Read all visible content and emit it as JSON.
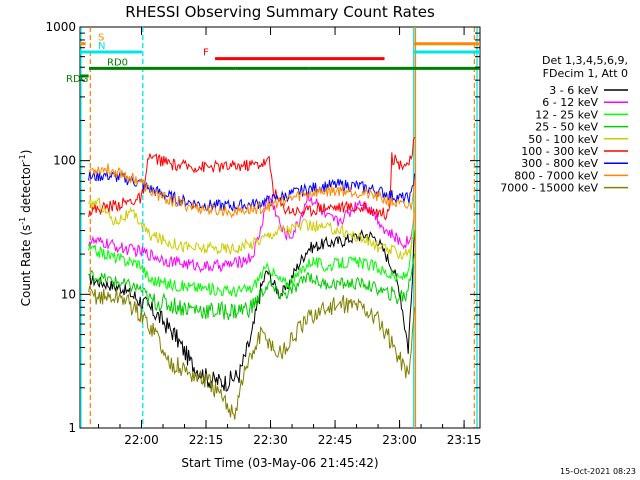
{
  "chart_data": {
    "type": "line",
    "title": "RHESSI Observing Summary Count Rates",
    "xlabel": "Start Time (03-May-06 21:45:42)",
    "ylabel_main": "Count Rate (s",
    "ylabel_sup1": "-1",
    "ylabel_mid": " detector",
    "ylabel_sup2": "-1",
    "ylabel_end": ")",
    "yscale": "log",
    "ylim": [
      1,
      1000
    ],
    "xlim_minutes_after_start": [
      0,
      93
    ],
    "y_ticks": [
      "1",
      "10",
      "100",
      "1000"
    ],
    "x_ticks": [
      {
        "label": "22:00",
        "t": 14.3
      },
      {
        "label": "22:15",
        "t": 29.3
      },
      {
        "label": "22:30",
        "t": 44.3
      },
      {
        "label": "22:45",
        "t": 59.3
      },
      {
        "label": "23:00",
        "t": 74.3
      },
      {
        "label": "23:15",
        "t": 89.3
      }
    ],
    "legend_header": [
      "Det 1,3,4,5,6,9,",
      "FDecim 1, Att 0"
    ],
    "series": [
      {
        "name": "3 - 6 keV",
        "color": "#000000",
        "points": [
          [
            2,
            13
          ],
          [
            6,
            12
          ],
          [
            10,
            11
          ],
          [
            14,
            9
          ],
          [
            18,
            7
          ],
          [
            22,
            5
          ],
          [
            26,
            3
          ],
          [
            30,
            2.3
          ],
          [
            34,
            2.2
          ],
          [
            37,
            2.5
          ],
          [
            40,
            5
          ],
          [
            42,
            11
          ],
          [
            43.5,
            15
          ],
          [
            45,
            12
          ],
          [
            46.5,
            10
          ],
          [
            48,
            11
          ],
          [
            50,
            15
          ],
          [
            53,
            22
          ],
          [
            57,
            24
          ],
          [
            61,
            25
          ],
          [
            64,
            27
          ],
          [
            67,
            28
          ],
          [
            69,
            26
          ],
          [
            71,
            20
          ],
          [
            73,
            15
          ],
          [
            74.5,
            10
          ],
          [
            75.5,
            6
          ],
          [
            76.3,
            4
          ],
          [
            77,
            9
          ],
          [
            77.8,
            30
          ]
        ]
      },
      {
        "name": "6 - 12 keV",
        "color": "#ff00ff",
        "points": [
          [
            2,
            25
          ],
          [
            6,
            24
          ],
          [
            10,
            22
          ],
          [
            14,
            21
          ],
          [
            16,
            20
          ],
          [
            20,
            18
          ],
          [
            24,
            17
          ],
          [
            30,
            16
          ],
          [
            36,
            17
          ],
          [
            40,
            19
          ],
          [
            42,
            30
          ],
          [
            43,
            45
          ],
          [
            44,
            55
          ],
          [
            45.5,
            42
          ],
          [
            47,
            30
          ],
          [
            49,
            27
          ],
          [
            51,
            35
          ],
          [
            53,
            55
          ],
          [
            55,
            48
          ],
          [
            57,
            38
          ],
          [
            60,
            35
          ],
          [
            63,
            42
          ],
          [
            65,
            50
          ],
          [
            67,
            45
          ],
          [
            69,
            38
          ],
          [
            71,
            30
          ],
          [
            73,
            27
          ],
          [
            75,
            24
          ],
          [
            77,
            26
          ],
          [
            77.8,
            45
          ]
        ]
      },
      {
        "name": "12 - 25 keV",
        "color": "#00ff00",
        "points": [
          [
            2,
            22
          ],
          [
            6,
            20
          ],
          [
            10,
            18
          ],
          [
            14,
            17
          ],
          [
            16,
            13
          ],
          [
            20,
            12
          ],
          [
            24,
            11.5
          ],
          [
            30,
            11
          ],
          [
            36,
            10.5
          ],
          [
            40,
            11
          ],
          [
            42,
            14
          ],
          [
            44,
            16
          ],
          [
            46,
            13
          ],
          [
            48,
            12
          ],
          [
            50,
            13
          ],
          [
            52,
            16
          ],
          [
            54,
            18
          ],
          [
            57,
            16
          ],
          [
            60,
            17
          ],
          [
            63,
            17.5
          ],
          [
            66,
            17
          ],
          [
            69,
            16
          ],
          [
            72,
            14
          ],
          [
            74,
            13
          ],
          [
            76,
            14
          ],
          [
            77.8,
            30
          ]
        ]
      },
      {
        "name": "25 - 50 keV",
        "color": "#00cc00",
        "points": [
          [
            2,
            14
          ],
          [
            6,
            13
          ],
          [
            10,
            12
          ],
          [
            14,
            11
          ],
          [
            16,
            9
          ],
          [
            20,
            8.5
          ],
          [
            24,
            8
          ],
          [
            30,
            7.5
          ],
          [
            36,
            7.5
          ],
          [
            40,
            8
          ],
          [
            42,
            10
          ],
          [
            44,
            12
          ],
          [
            46,
            10
          ],
          [
            48,
            10
          ],
          [
            50,
            11
          ],
          [
            53,
            14
          ],
          [
            56,
            12
          ],
          [
            60,
            12
          ],
          [
            63,
            12
          ],
          [
            66,
            12
          ],
          [
            69,
            11
          ],
          [
            72,
            10
          ],
          [
            74,
            9.5
          ],
          [
            76,
            10
          ],
          [
            77.8,
            20
          ]
        ]
      },
      {
        "name": "50 - 100 keV",
        "color": "#cccc00",
        "points": [
          [
            2,
            45
          ],
          [
            4,
            50
          ],
          [
            6,
            42
          ],
          [
            8,
            35
          ],
          [
            10,
            38
          ],
          [
            12,
            40
          ],
          [
            14,
            35
          ],
          [
            16,
            28
          ],
          [
            20,
            25
          ],
          [
            24,
            23
          ],
          [
            28,
            22
          ],
          [
            32,
            22
          ],
          [
            36,
            22
          ],
          [
            40,
            24
          ],
          [
            43,
            27
          ],
          [
            46,
            30
          ],
          [
            49,
            31
          ],
          [
            52,
            33
          ],
          [
            55,
            32
          ],
          [
            58,
            31
          ],
          [
            61,
            30
          ],
          [
            64,
            27
          ],
          [
            67,
            25
          ],
          [
            70,
            22
          ],
          [
            73,
            21
          ],
          [
            75,
            20
          ],
          [
            77,
            22
          ],
          [
            77.8,
            45
          ]
        ]
      },
      {
        "name": "100 - 300 keV",
        "color": "#ff0000",
        "points": [
          [
            2,
            42
          ],
          [
            6,
            45
          ],
          [
            10,
            48
          ],
          [
            14,
            52
          ],
          [
            15,
            60
          ],
          [
            16,
            108
          ],
          [
            19,
            100
          ],
          [
            22,
            92
          ],
          [
            26,
            90
          ],
          [
            30,
            90
          ],
          [
            34,
            90
          ],
          [
            38,
            92
          ],
          [
            42,
            95
          ],
          [
            44,
            100
          ],
          [
            45,
            60
          ],
          [
            47,
            45
          ],
          [
            50,
            42
          ],
          [
            53,
            42
          ],
          [
            56,
            45
          ],
          [
            60,
            45
          ],
          [
            63,
            45
          ],
          [
            66,
            44
          ],
          [
            69,
            42
          ],
          [
            71,
            40
          ],
          [
            72,
            48
          ],
          [
            72.5,
            105
          ],
          [
            74,
            95
          ],
          [
            76,
            95
          ],
          [
            77,
            100
          ],
          [
            77.8,
            150
          ]
        ]
      },
      {
        "name": "300 - 800 keV",
        "color": "#0000ff",
        "points": [
          [
            2,
            75
          ],
          [
            6,
            78
          ],
          [
            10,
            74
          ],
          [
            14,
            68
          ],
          [
            16,
            62
          ],
          [
            20,
            55
          ],
          [
            24,
            50
          ],
          [
            28,
            47
          ],
          [
            32,
            46
          ],
          [
            36,
            46
          ],
          [
            40,
            47
          ],
          [
            44,
            50
          ],
          [
            48,
            55
          ],
          [
            52,
            60
          ],
          [
            56,
            64
          ],
          [
            60,
            66
          ],
          [
            64,
            65
          ],
          [
            68,
            61
          ],
          [
            71,
            57
          ],
          [
            74,
            53
          ],
          [
            76,
            52
          ],
          [
            77,
            54
          ],
          [
            77.8,
            80
          ]
        ]
      },
      {
        "name": "800 - 7000 keV",
        "color": "#ff8800",
        "points": [
          [
            2,
            85
          ],
          [
            6,
            87
          ],
          [
            10,
            80
          ],
          [
            14,
            70
          ],
          [
            16,
            60
          ],
          [
            20,
            52
          ],
          [
            24,
            47
          ],
          [
            28,
            44
          ],
          [
            32,
            42
          ],
          [
            36,
            42
          ],
          [
            40,
            43
          ],
          [
            44,
            46
          ],
          [
            48,
            51
          ],
          [
            52,
            56
          ],
          [
            56,
            59
          ],
          [
            60,
            60
          ],
          [
            64,
            59
          ],
          [
            68,
            55
          ],
          [
            71,
            51
          ],
          [
            74,
            47
          ],
          [
            76,
            45
          ],
          [
            77,
            46
          ],
          [
            77.8,
            70
          ]
        ]
      },
      {
        "name": "7000 - 15000 keV",
        "color": "#808000",
        "points": [
          [
            2,
            10
          ],
          [
            6,
            9.5
          ],
          [
            10,
            9.5
          ],
          [
            14,
            7
          ],
          [
            18,
            5
          ],
          [
            20,
            3.2
          ],
          [
            22,
            3
          ],
          [
            26,
            2.5
          ],
          [
            30,
            2.2
          ],
          [
            34,
            1.5
          ],
          [
            36,
            1.3
          ],
          [
            38,
            2.5
          ],
          [
            40,
            3.5
          ],
          [
            42,
            5
          ],
          [
            44,
            4.5
          ],
          [
            46,
            3.5
          ],
          [
            48,
            4
          ],
          [
            50,
            5
          ],
          [
            54,
            7
          ],
          [
            58,
            8
          ],
          [
            62,
            8.5
          ],
          [
            66,
            8
          ],
          [
            70,
            6
          ],
          [
            73,
            4
          ],
          [
            75,
            3
          ],
          [
            76.5,
            2.5
          ],
          [
            77.8,
            8
          ]
        ]
      }
    ],
    "annotations": [
      {
        "label": "S",
        "color": "#ff8800",
        "segments": [
          [
            0,
            1.3
          ],
          [
            77.6,
            93
          ]
        ],
        "level": 750
      },
      {
        "label": "N",
        "color": "#00e5e5",
        "segments": [
          [
            0,
            14.4
          ],
          [
            77.6,
            93
          ]
        ],
        "level": 650
      },
      {
        "label": "F",
        "color": "#ff0000",
        "segments": [
          [
            31.4,
            70.8
          ]
        ],
        "level": 580
      },
      {
        "label": "RD0",
        "color": "#008000",
        "segments": [
          [
            2.1,
            14.5
          ],
          [
            14.5,
            36.2
          ],
          [
            36.2,
            53.2
          ],
          [
            53.2,
            93
          ]
        ],
        "level": 490
      },
      {
        "label": "RDG",
        "color": "#008000",
        "segments": [
          [
            0,
            2.0
          ]
        ],
        "level": 430
      }
    ],
    "vlines": [
      {
        "t": 0.2,
        "color": "#00e5e5",
        "style": "solid"
      },
      {
        "t": 2.4,
        "color": "#ff8800",
        "style": "dashed"
      },
      {
        "t": 14.6,
        "color": "#00e5e5",
        "style": "dashed"
      },
      {
        "t": 77.6,
        "color": "#00e5e5",
        "style": "solid"
      },
      {
        "t": 78.0,
        "color": "#ff8800",
        "style": "solid"
      },
      {
        "t": 91.7,
        "color": "#ff8800",
        "style": "dashed"
      },
      {
        "t": 92.3,
        "color": "#00e5e5",
        "style": "solid"
      }
    ],
    "timestamp": "15-Oct-2021 08:23"
  }
}
